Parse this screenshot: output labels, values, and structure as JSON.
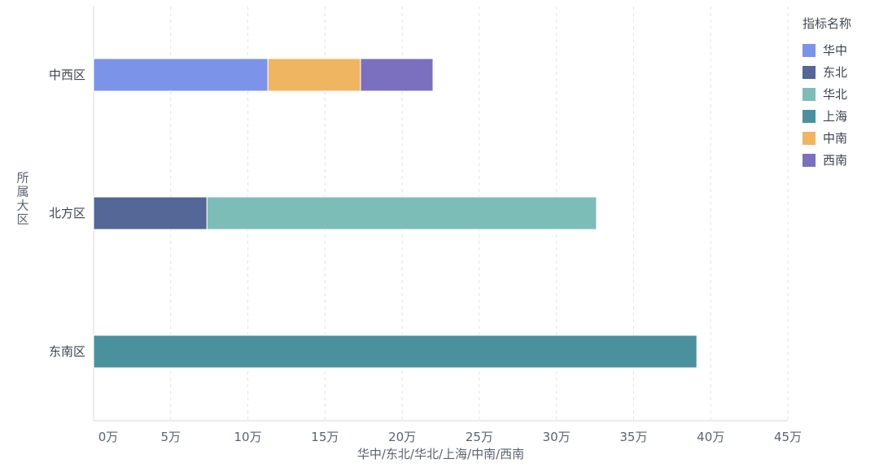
{
  "chart_data": {
    "type": "bar",
    "orientation": "horizontal",
    "stacked": true,
    "xlabel": "华中/东北/华北/上海/中南/西南",
    "ylabel": "所属大区",
    "x_unit": "万",
    "xlim": [
      0,
      450000
    ],
    "x_ticks": [
      0,
      50000,
      100000,
      150000,
      200000,
      250000,
      300000,
      350000,
      400000,
      450000
    ],
    "x_tick_labels": [
      "0万",
      "5万",
      "10万",
      "15万",
      "20万",
      "25万",
      "30万",
      "35万",
      "40万",
      "45万"
    ],
    "grid": {
      "vertical": true,
      "style": "dashed"
    },
    "legend_position": "top-right",
    "legend_title": "指标名称",
    "categories": [
      "中西区",
      "北方区",
      "东南区"
    ],
    "series": [
      {
        "name": "华中",
        "color": "#7b93e8",
        "values": [
          113000,
          0,
          0
        ]
      },
      {
        "name": "东北",
        "color": "#546796",
        "values": [
          0,
          73500,
          0
        ]
      },
      {
        "name": "华北",
        "color": "#7dbdb8",
        "values": [
          0,
          252500,
          0
        ]
      },
      {
        "name": "上海",
        "color": "#4a919d",
        "values": [
          0,
          0,
          391000
        ]
      },
      {
        "name": "中南",
        "color": "#efb560",
        "values": [
          60000,
          0,
          0
        ]
      },
      {
        "name": "西南",
        "color": "#7b70bf",
        "values": [
          47000,
          0,
          0
        ]
      }
    ]
  }
}
